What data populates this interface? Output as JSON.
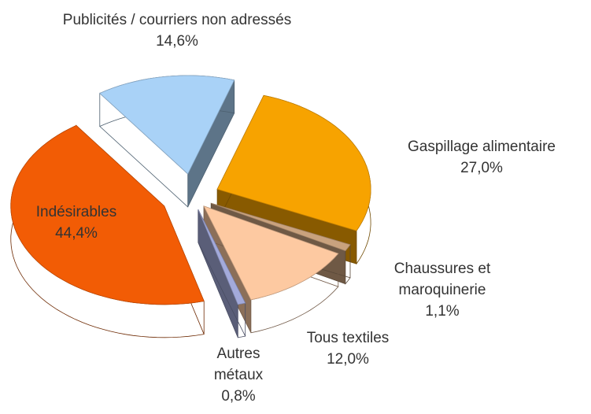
{
  "chart_data": {
    "type": "pie",
    "categories": [
      "Publicités / courriers non adressés",
      "Gaspillage alimentaire",
      "Chaussures et maroquinerie",
      "Tous textiles",
      "Autres métaux",
      "Indésirables"
    ],
    "values": [
      14.6,
      27.0,
      1.1,
      12.0,
      0.8,
      44.4
    ],
    "value_labels": [
      "14,6%",
      "27,0%",
      "1,1%",
      "12,0%",
      "0,8%",
      "44,4%"
    ],
    "colors": [
      "#a9d2f7",
      "#f7a300",
      "#c9a27e",
      "#fdc9a1",
      "#a3aadb",
      "#f25c05"
    ]
  }
}
